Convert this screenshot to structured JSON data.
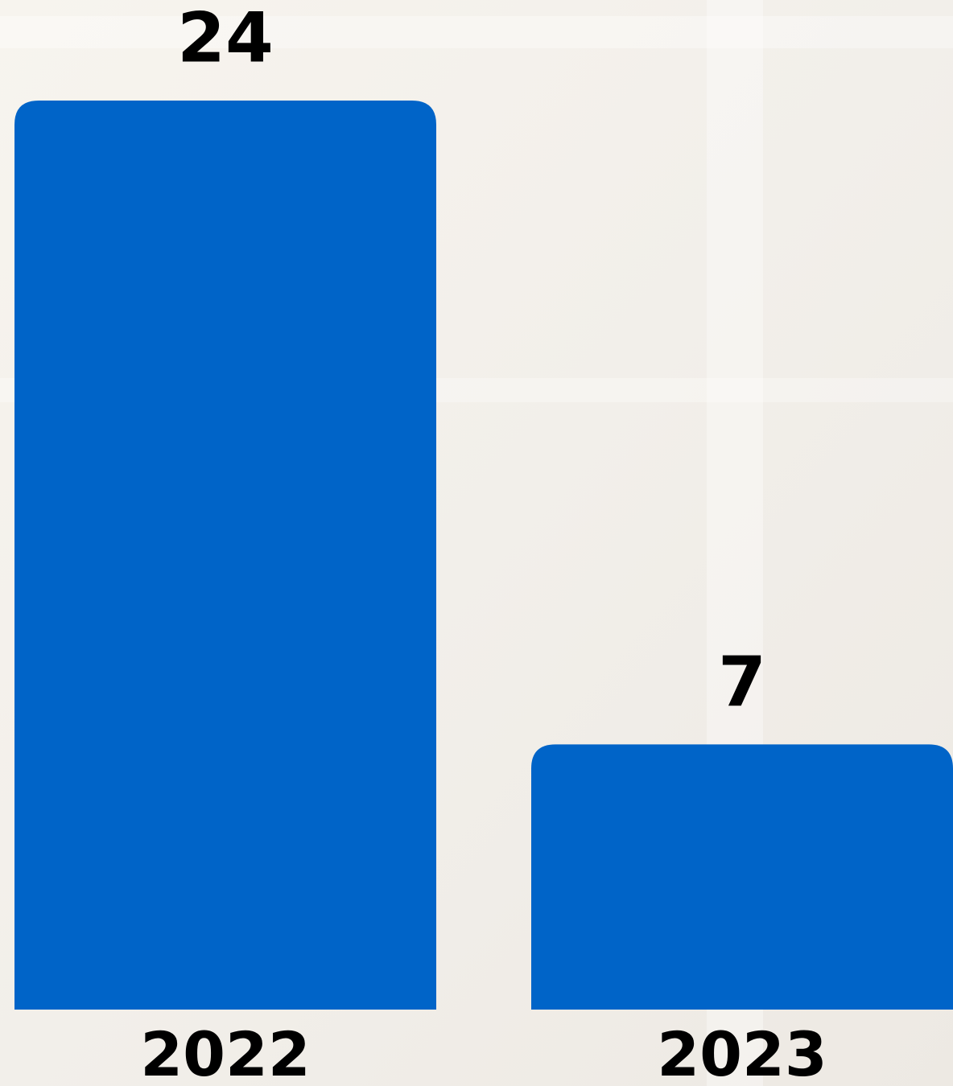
{
  "chart_data": {
    "type": "bar",
    "categories": [
      "2022",
      "2023"
    ],
    "values": [
      24,
      7
    ],
    "color": "#0064c8"
  }
}
